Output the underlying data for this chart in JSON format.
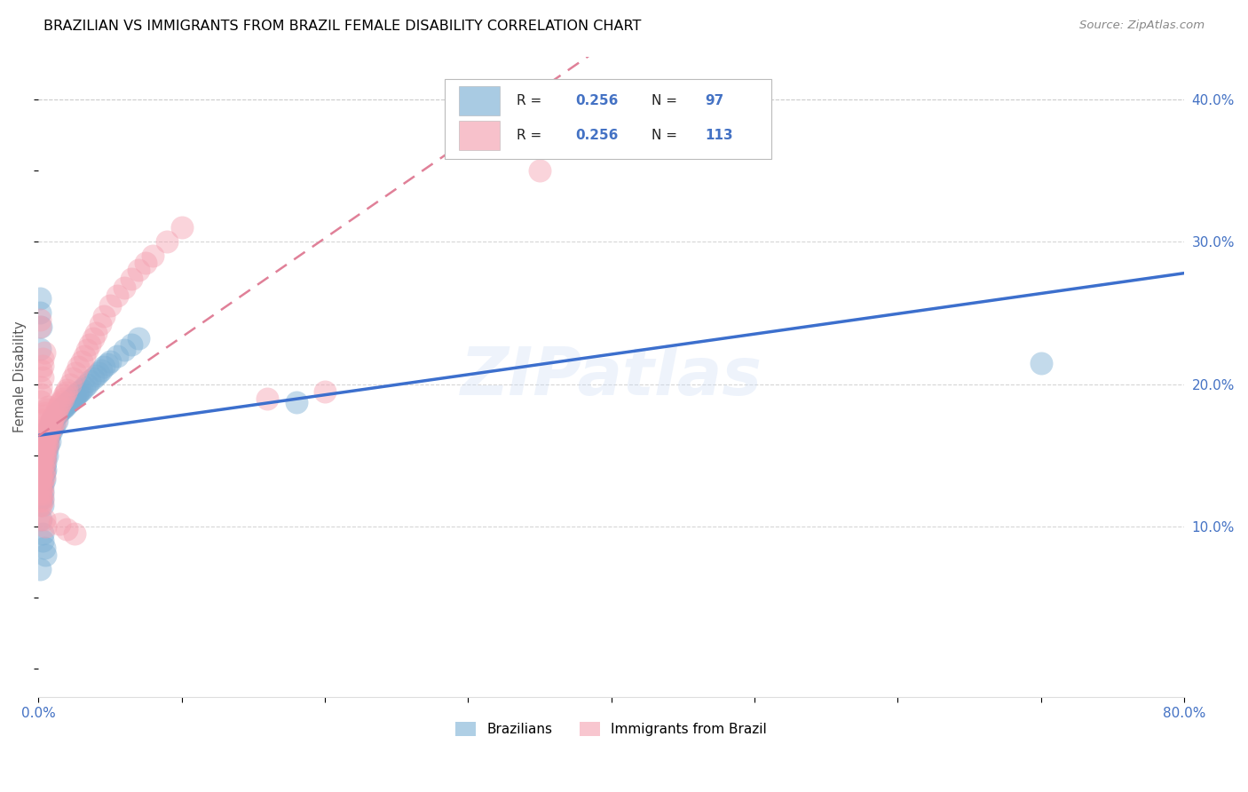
{
  "title": "BRAZILIAN VS IMMIGRANTS FROM BRAZIL FEMALE DISABILITY CORRELATION CHART",
  "source": "Source: ZipAtlas.com",
  "ylabel": "Female Disability",
  "watermark": "ZIPatlas",
  "xlim": [
    0.0,
    0.8
  ],
  "ylim": [
    -0.02,
    0.43
  ],
  "xticks": [
    0.0,
    0.1,
    0.2,
    0.3,
    0.4,
    0.5,
    0.6,
    0.7,
    0.8
  ],
  "xticklabels": [
    "0.0%",
    "",
    "",
    "",
    "",
    "",
    "",
    "",
    "80.0%"
  ],
  "yticks": [
    0.0,
    0.1,
    0.2,
    0.3,
    0.4
  ],
  "yticklabels": [
    "",
    "10.0%",
    "20.0%",
    "30.0%",
    "40.0%"
  ],
  "series1_color": "#7bafd4",
  "series2_color": "#f4a0b0",
  "trendline1_color": "#3c6fcd",
  "trendline2_color": "#e08098",
  "background_color": "#ffffff",
  "grid_color": "#cccccc",
  "title_color": "#000000",
  "axis_label_color": "#555555",
  "tick_label_color": "#4472c4",
  "legend_text_color": "#222222",
  "legend_value_color": "#4472c4",
  "series1_x": [
    0.001,
    0.001,
    0.001,
    0.001,
    0.002,
    0.002,
    0.002,
    0.002,
    0.002,
    0.002,
    0.002,
    0.002,
    0.003,
    0.003,
    0.003,
    0.003,
    0.003,
    0.003,
    0.003,
    0.003,
    0.003,
    0.004,
    0.004,
    0.004,
    0.004,
    0.004,
    0.004,
    0.005,
    0.005,
    0.005,
    0.005,
    0.005,
    0.006,
    0.006,
    0.006,
    0.006,
    0.007,
    0.007,
    0.007,
    0.008,
    0.008,
    0.008,
    0.009,
    0.009,
    0.01,
    0.01,
    0.011,
    0.011,
    0.012,
    0.013,
    0.013,
    0.014,
    0.015,
    0.016,
    0.017,
    0.018,
    0.019,
    0.02,
    0.021,
    0.022,
    0.023,
    0.024,
    0.025,
    0.026,
    0.027,
    0.028,
    0.029,
    0.03,
    0.032,
    0.034,
    0.036,
    0.038,
    0.04,
    0.042,
    0.044,
    0.046,
    0.048,
    0.05,
    0.055,
    0.06,
    0.065,
    0.07,
    0.002,
    0.001,
    0.001,
    0.001,
    0.001,
    0.002,
    0.003,
    0.003,
    0.004,
    0.005,
    0.7,
    0.18,
    0.002,
    0.001
  ],
  "series1_y": [
    0.155,
    0.135,
    0.13,
    0.145,
    0.158,
    0.163,
    0.148,
    0.14,
    0.135,
    0.13,
    0.128,
    0.12,
    0.155,
    0.15,
    0.145,
    0.14,
    0.135,
    0.13,
    0.125,
    0.12,
    0.115,
    0.158,
    0.153,
    0.148,
    0.143,
    0.138,
    0.133,
    0.16,
    0.155,
    0.15,
    0.145,
    0.14,
    0.165,
    0.16,
    0.155,
    0.15,
    0.167,
    0.162,
    0.157,
    0.17,
    0.165,
    0.16,
    0.172,
    0.167,
    0.175,
    0.17,
    0.176,
    0.171,
    0.178,
    0.179,
    0.174,
    0.18,
    0.181,
    0.182,
    0.183,
    0.184,
    0.185,
    0.186,
    0.187,
    0.188,
    0.189,
    0.19,
    0.191,
    0.192,
    0.193,
    0.194,
    0.195,
    0.196,
    0.198,
    0.2,
    0.202,
    0.204,
    0.206,
    0.208,
    0.21,
    0.212,
    0.214,
    0.216,
    0.22,
    0.224,
    0.228,
    0.232,
    0.24,
    0.25,
    0.26,
    0.225,
    0.12,
    0.105,
    0.095,
    0.09,
    0.085,
    0.08,
    0.215,
    0.187,
    0.16,
    0.07
  ],
  "series2_x": [
    0.001,
    0.001,
    0.001,
    0.001,
    0.001,
    0.001,
    0.001,
    0.002,
    0.002,
    0.002,
    0.002,
    0.002,
    0.002,
    0.002,
    0.002,
    0.002,
    0.003,
    0.003,
    0.003,
    0.003,
    0.003,
    0.003,
    0.003,
    0.003,
    0.003,
    0.004,
    0.004,
    0.004,
    0.004,
    0.004,
    0.004,
    0.005,
    0.005,
    0.005,
    0.005,
    0.006,
    0.006,
    0.006,
    0.007,
    0.007,
    0.007,
    0.008,
    0.008,
    0.009,
    0.009,
    0.01,
    0.01,
    0.011,
    0.012,
    0.012,
    0.013,
    0.014,
    0.015,
    0.016,
    0.017,
    0.018,
    0.019,
    0.02,
    0.022,
    0.024,
    0.026,
    0.028,
    0.03,
    0.032,
    0.034,
    0.036,
    0.038,
    0.04,
    0.043,
    0.046,
    0.05,
    0.055,
    0.06,
    0.065,
    0.07,
    0.075,
    0.08,
    0.09,
    0.1,
    0.001,
    0.001,
    0.001,
    0.001,
    0.001,
    0.002,
    0.002,
    0.002,
    0.003,
    0.003,
    0.003,
    0.004,
    0.005,
    0.006,
    0.007,
    0.003,
    0.002,
    0.002,
    0.002,
    0.002,
    0.003,
    0.003,
    0.004,
    0.015,
    0.02,
    0.025,
    0.16,
    0.2,
    0.001,
    0.001,
    0.002,
    0.004,
    0.005,
    0.35
  ],
  "series2_y": [
    0.15,
    0.143,
    0.138,
    0.133,
    0.128,
    0.123,
    0.118,
    0.155,
    0.15,
    0.145,
    0.14,
    0.135,
    0.13,
    0.125,
    0.12,
    0.115,
    0.158,
    0.153,
    0.148,
    0.143,
    0.138,
    0.133,
    0.128,
    0.123,
    0.118,
    0.16,
    0.155,
    0.15,
    0.145,
    0.14,
    0.135,
    0.163,
    0.158,
    0.153,
    0.148,
    0.166,
    0.161,
    0.156,
    0.169,
    0.164,
    0.159,
    0.172,
    0.167,
    0.174,
    0.169,
    0.176,
    0.171,
    0.178,
    0.18,
    0.175,
    0.182,
    0.184,
    0.186,
    0.188,
    0.19,
    0.192,
    0.194,
    0.196,
    0.2,
    0.204,
    0.208,
    0.212,
    0.216,
    0.22,
    0.224,
    0.228,
    0.232,
    0.236,
    0.242,
    0.248,
    0.255,
    0.262,
    0.268,
    0.274,
    0.28,
    0.285,
    0.29,
    0.3,
    0.31,
    0.245,
    0.24,
    0.165,
    0.115,
    0.105,
    0.168,
    0.162,
    0.155,
    0.175,
    0.17,
    0.165,
    0.178,
    0.18,
    0.182,
    0.184,
    0.205,
    0.21,
    0.198,
    0.193,
    0.188,
    0.213,
    0.218,
    0.222,
    0.102,
    0.098,
    0.095,
    0.19,
    0.195,
    0.145,
    0.14,
    0.135,
    0.105,
    0.1,
    0.35
  ]
}
